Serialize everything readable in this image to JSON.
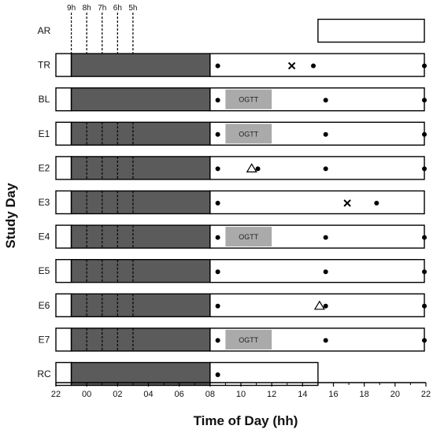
{
  "chart_data": {
    "type": "timeline",
    "xlabel": "Time of Day (hh)",
    "ylabel": "Study Day",
    "x_ticks": [
      "22",
      "00",
      "02",
      "04",
      "06",
      "08",
      "10",
      "12",
      "14",
      "16",
      "18",
      "20",
      "22"
    ],
    "x_range": [
      22,
      46
    ],
    "hour_markers": [
      {
        "label": "9h",
        "x": 23
      },
      {
        "label": "8h",
        "x": 24
      },
      {
        "label": "7h",
        "x": 25
      },
      {
        "label": "6h",
        "x": 26
      },
      {
        "label": "5h",
        "x": 27
      }
    ],
    "colors": {
      "dark": "#5b5b5b",
      "ogtt": "#aaaaaa",
      "frame": "#000000"
    },
    "rows": [
      {
        "label": "AR",
        "bars": [
          {
            "start": 39,
            "end": 45.9,
            "fill": "white"
          }
        ],
        "dividers": [],
        "ogtt": [],
        "dots": [],
        "x_marks": [],
        "triangles": []
      },
      {
        "label": "TR",
        "bars": [
          {
            "start": 22,
            "end": 23,
            "fill": "white"
          },
          {
            "start": 23,
            "end": 32,
            "fill": "dark"
          },
          {
            "start": 32,
            "end": 45.9,
            "fill": "white"
          }
        ],
        "dividers": [
          23
        ],
        "ogtt": [],
        "dots": [
          32.5,
          38.7,
          45.9
        ],
        "x_marks": [
          37.3
        ],
        "triangles": []
      },
      {
        "label": "BL",
        "bars": [
          {
            "start": 22,
            "end": 23,
            "fill": "white"
          },
          {
            "start": 23,
            "end": 32,
            "fill": "dark"
          },
          {
            "start": 32,
            "end": 45.9,
            "fill": "white"
          }
        ],
        "dividers": [
          23
        ],
        "ogtt": [
          {
            "start": 33,
            "end": 36,
            "label": "OGTT"
          }
        ],
        "dots": [
          32.5,
          39.5,
          45.9
        ],
        "x_marks": [],
        "triangles": []
      },
      {
        "label": "E1",
        "bars": [
          {
            "start": 22,
            "end": 23,
            "fill": "white"
          },
          {
            "start": 23,
            "end": 32,
            "fill": "dark"
          },
          {
            "start": 32,
            "end": 45.9,
            "fill": "white"
          }
        ],
        "dividers": [
          23,
          24,
          25,
          26,
          27
        ],
        "ogtt": [
          {
            "start": 33,
            "end": 36,
            "label": "OGTT"
          }
        ],
        "dots": [
          32.5,
          39.5,
          45.9
        ],
        "x_marks": [],
        "triangles": []
      },
      {
        "label": "E2",
        "bars": [
          {
            "start": 22,
            "end": 23,
            "fill": "white"
          },
          {
            "start": 23,
            "end": 32,
            "fill": "dark"
          },
          {
            "start": 32,
            "end": 45.9,
            "fill": "white"
          }
        ],
        "dividers": [
          23,
          24,
          25,
          26,
          27
        ],
        "ogtt": [],
        "dots": [
          32.5,
          35.1,
          39.5,
          45.9
        ],
        "x_marks": [],
        "triangles": [
          34.7
        ]
      },
      {
        "label": "E3",
        "bars": [
          {
            "start": 22,
            "end": 23,
            "fill": "white"
          },
          {
            "start": 23,
            "end": 32,
            "fill": "dark"
          },
          {
            "start": 32,
            "end": 45.9,
            "fill": "white"
          }
        ],
        "dividers": [
          23,
          24,
          25,
          26,
          27
        ],
        "ogtt": [],
        "dots": [
          32.5,
          42.8
        ],
        "x_marks": [
          40.9
        ],
        "triangles": []
      },
      {
        "label": "E4",
        "bars": [
          {
            "start": 22,
            "end": 23,
            "fill": "white"
          },
          {
            "start": 23,
            "end": 32,
            "fill": "dark"
          },
          {
            "start": 32,
            "end": 45.9,
            "fill": "white"
          }
        ],
        "dividers": [
          23,
          24,
          25,
          26,
          27
        ],
        "ogtt": [
          {
            "start": 33,
            "end": 36,
            "label": "OGTT"
          }
        ],
        "dots": [
          32.5,
          39.5,
          45.9
        ],
        "x_marks": [],
        "triangles": []
      },
      {
        "label": "E5",
        "bars": [
          {
            "start": 22,
            "end": 23,
            "fill": "white"
          },
          {
            "start": 23,
            "end": 32,
            "fill": "dark"
          },
          {
            "start": 32,
            "end": 45.9,
            "fill": "white"
          }
        ],
        "dividers": [
          23,
          24,
          25,
          26,
          27
        ],
        "ogtt": [],
        "dots": [
          32.5,
          39.5,
          45.9
        ],
        "x_marks": [],
        "triangles": []
      },
      {
        "label": "E6",
        "bars": [
          {
            "start": 22,
            "end": 23,
            "fill": "white"
          },
          {
            "start": 23,
            "end": 32,
            "fill": "dark"
          },
          {
            "start": 32,
            "end": 45.9,
            "fill": "white"
          }
        ],
        "dividers": [
          23,
          24,
          25,
          26,
          27
        ],
        "ogtt": [],
        "dots": [
          32.5,
          39.5,
          45.9
        ],
        "x_marks": [],
        "triangles": [
          39.1
        ]
      },
      {
        "label": "E7",
        "bars": [
          {
            "start": 22,
            "end": 23,
            "fill": "white"
          },
          {
            "start": 23,
            "end": 32,
            "fill": "dark"
          },
          {
            "start": 32,
            "end": 45.9,
            "fill": "white"
          }
        ],
        "dividers": [
          23,
          24,
          25,
          26,
          27
        ],
        "ogtt": [
          {
            "start": 33,
            "end": 36,
            "label": "OGTT"
          }
        ],
        "dots": [
          32.5,
          39.5,
          45.9
        ],
        "x_marks": [],
        "triangles": []
      },
      {
        "label": "RC",
        "bars": [
          {
            "start": 22,
            "end": 23,
            "fill": "white"
          },
          {
            "start": 23,
            "end": 32,
            "fill": "dark"
          },
          {
            "start": 32,
            "end": 39,
            "fill": "white"
          }
        ],
        "dividers": [
          23
        ],
        "ogtt": [],
        "dots": [
          32.5
        ],
        "x_marks": [],
        "triangles": []
      }
    ]
  }
}
